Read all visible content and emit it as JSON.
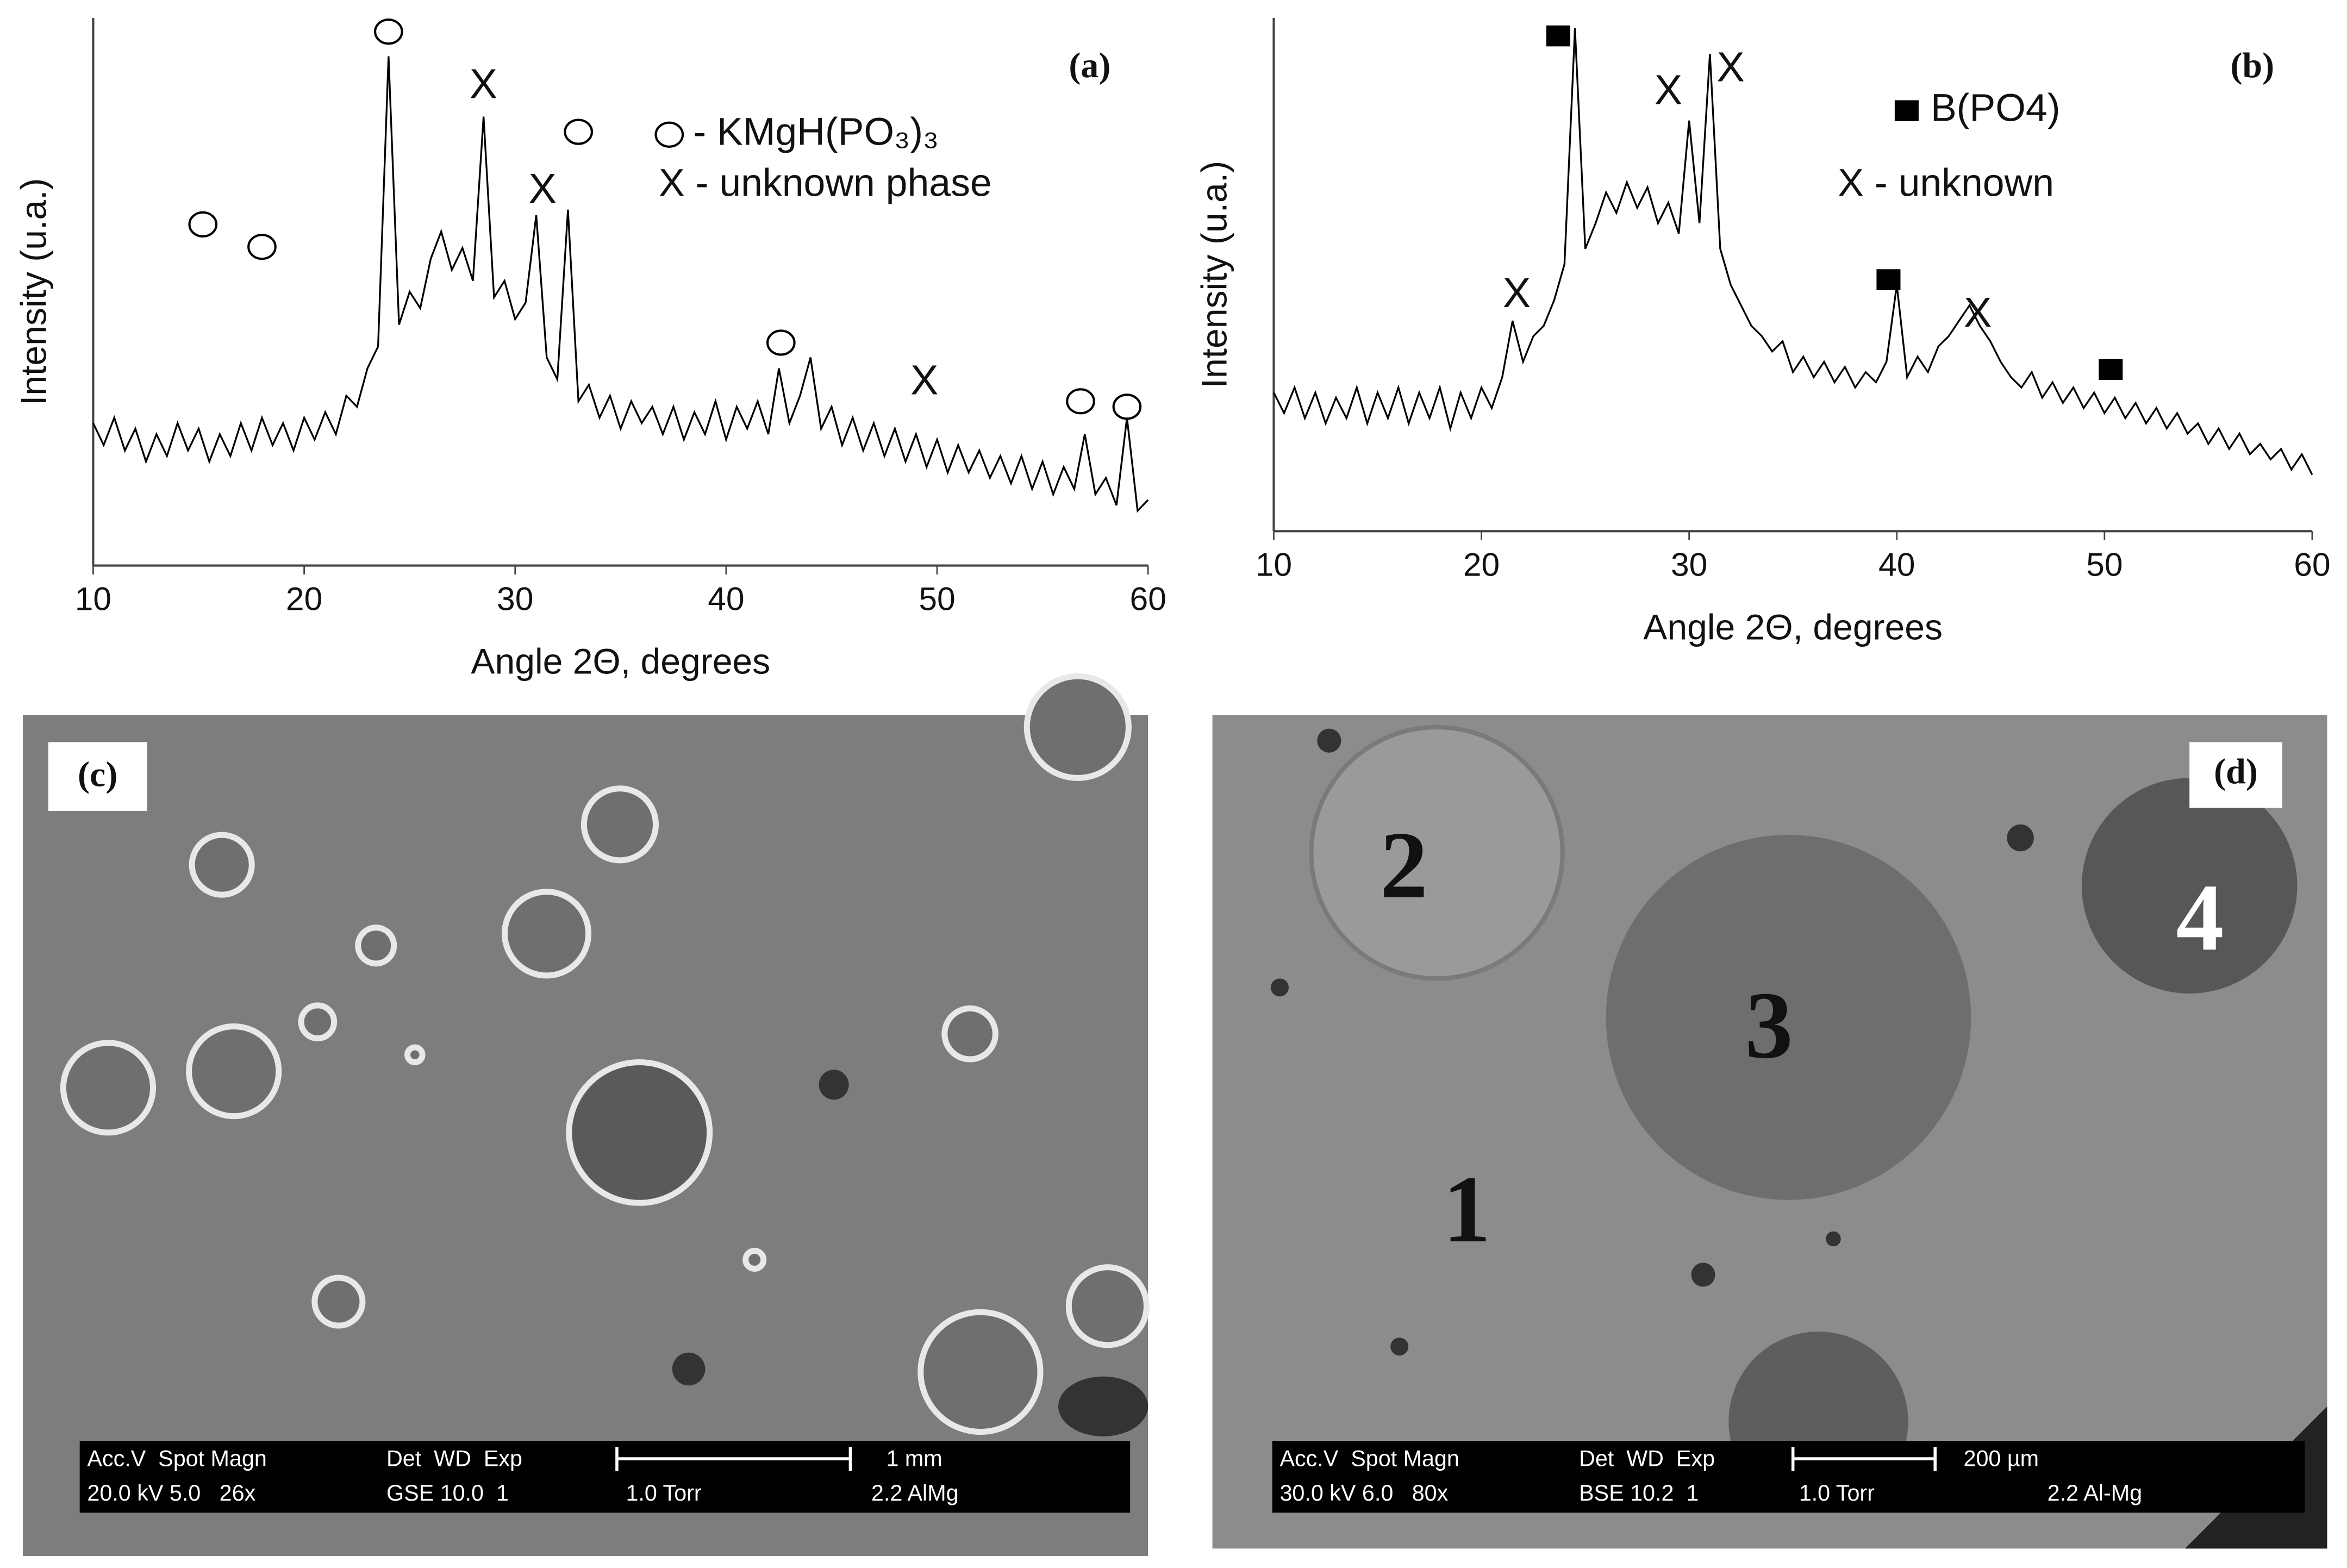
{
  "chart_data": [
    {
      "type": "line",
      "panel": "(a)",
      "xlabel": "Angle 2Θ, degrees",
      "ylabel": "Intensity (u.a.)",
      "color": "#000000",
      "xlim": [
        10,
        60
      ],
      "xticks": [
        10,
        20,
        30,
        40,
        50,
        60
      ],
      "ylim": [
        0,
        100
      ],
      "x": [
        10,
        10.5,
        11,
        11.5,
        12,
        12.5,
        13,
        13.5,
        14,
        14.5,
        15,
        15.5,
        16,
        16.5,
        17,
        17.5,
        18,
        18.5,
        19,
        19.5,
        20,
        20.5,
        21,
        21.5,
        22,
        22.5,
        23,
        23.5,
        24,
        24.5,
        25,
        25.5,
        26,
        26.5,
        27,
        27.5,
        28,
        28.5,
        29,
        29.5,
        30,
        30.5,
        31,
        31.5,
        32,
        32.5,
        33,
        33.5,
        34,
        34.5,
        35,
        35.5,
        36,
        36.5,
        37,
        37.5,
        38,
        38.5,
        39,
        39.5,
        40,
        40.5,
        41,
        41.5,
        42,
        42.5,
        43,
        43.5,
        44,
        44.5,
        45,
        45.5,
        46,
        46.5,
        47,
        47.5,
        48,
        48.5,
        49,
        49.5,
        50,
        50.5,
        51,
        51.5,
        52,
        52.5,
        53,
        53.5,
        54,
        54.5,
        55,
        55.5,
        56,
        56.5,
        57,
        57.5,
        58,
        58.5,
        59,
        59.5,
        60
      ],
      "values": [
        26,
        22,
        27,
        21,
        25,
        19,
        24,
        20,
        26,
        21,
        25,
        19,
        24,
        20,
        26,
        21,
        27,
        22,
        26,
        21,
        27,
        23,
        28,
        24,
        31,
        29,
        36,
        40,
        93,
        44,
        50,
        47,
        56,
        61,
        54,
        58,
        52,
        82,
        49,
        52,
        45,
        48,
        64,
        38,
        34,
        65,
        30,
        33,
        27,
        31,
        25,
        30,
        26,
        29,
        24,
        29,
        23,
        28,
        24,
        30,
        23,
        29,
        25,
        30,
        24,
        36,
        26,
        31,
        38,
        25,
        29,
        22,
        27,
        21,
        26,
        20,
        25,
        19,
        24,
        18,
        23,
        17,
        22,
        17,
        21,
        16,
        20,
        15,
        20,
        14,
        19,
        13,
        18,
        14,
        24,
        13,
        16,
        11,
        27,
        10,
        12
      ],
      "annotations": [
        {
          "symbol": "circle",
          "x": 24.0,
          "y": 97.5
        },
        {
          "symbol": "circle",
          "x": 15.2,
          "y": 62.3
        },
        {
          "symbol": "circle",
          "x": 18.0,
          "y": 58.2
        },
        {
          "symbol": "circle",
          "x": 33.0,
          "y": 79.2
        },
        {
          "symbol": "circle",
          "x": 42.6,
          "y": 40.7
        },
        {
          "symbol": "circle",
          "x": 56.8,
          "y": 30
        },
        {
          "symbol": "circle",
          "x": 59.0,
          "y": 29
        },
        {
          "text": "X",
          "x": 28.5,
          "y": 87.4
        },
        {
          "text": "X",
          "x": 31.3,
          "y": 68.3
        },
        {
          "text": "X",
          "x": 49.4,
          "y": 33.3
        }
      ],
      "legend": [
        {
          "symbol": "circle",
          "text": "- KMgH(PO₃)₃"
        },
        {
          "text": "X - unknown phase"
        }
      ]
    },
    {
      "type": "line",
      "panel": "(b)",
      "xlabel": "Angle 2Θ, degrees",
      "ylabel": "Intensity (u.a.)",
      "color": "#000000",
      "xlim": [
        10,
        60
      ],
      "xticks": [
        10,
        20,
        30,
        40,
        50,
        60
      ],
      "ylim": [
        0,
        100
      ],
      "x": [
        10,
        10.5,
        11,
        11.5,
        12,
        12.5,
        13,
        13.5,
        14,
        14.5,
        15,
        15.5,
        16,
        16.5,
        17,
        17.5,
        18,
        18.5,
        19,
        19.5,
        20,
        20.5,
        21,
        21.5,
        22,
        22.5,
        23,
        23.5,
        24,
        24.5,
        25,
        25.5,
        26,
        26.5,
        27,
        27.5,
        28,
        28.5,
        29,
        29.5,
        30,
        30.5,
        31,
        31.5,
        32,
        32.5,
        33,
        33.5,
        34,
        34.5,
        35,
        35.5,
        36,
        36.5,
        37,
        37.5,
        38,
        38.5,
        39,
        39.5,
        40,
        40.5,
        41,
        41.5,
        42,
        42.5,
        43,
        43.5,
        44,
        44.5,
        45,
        45.5,
        46,
        46.5,
        47,
        47.5,
        48,
        48.5,
        49,
        49.5,
        50,
        50.5,
        51,
        51.5,
        52,
        52.5,
        53,
        53.5,
        54,
        54.5,
        55,
        55.5,
        56,
        56.5,
        57,
        57.5,
        58,
        58.5,
        59,
        59.5,
        60
      ],
      "values": [
        27,
        23,
        28,
        22,
        27,
        21,
        26,
        22,
        28,
        21,
        27,
        22,
        28,
        21,
        27,
        22,
        28,
        20,
        27,
        22,
        28,
        24,
        30,
        41,
        33,
        38,
        40,
        45,
        52,
        98,
        55,
        60,
        66,
        62,
        68,
        63,
        67,
        60,
        64,
        58,
        80,
        60,
        93,
        55,
        48,
        44,
        40,
        38,
        35,
        37,
        31,
        34,
        30,
        33,
        29,
        32,
        28,
        31,
        29,
        33,
        48,
        30,
        34,
        31,
        36,
        38,
        41,
        44,
        40,
        37,
        33,
        30,
        28,
        31,
        26,
        29,
        25,
        28,
        24,
        27,
        23,
        26,
        22,
        25,
        21,
        24,
        20,
        23,
        19,
        21,
        17,
        20,
        16,
        19,
        15,
        17,
        14,
        16,
        12,
        15,
        11
      ],
      "annotations": [
        {
          "symbol": "square",
          "x": 23.7,
          "y": 96.5
        },
        {
          "symbol": "square",
          "x": 39.6,
          "y": 49
        },
        {
          "symbol": "square",
          "x": 50.3,
          "y": 31.5
        },
        {
          "text": "X",
          "x": 29.0,
          "y": 85.4
        },
        {
          "text": "X",
          "x": 32.0,
          "y": 89.8
        },
        {
          "text": "X",
          "x": 21.7,
          "y": 45.8
        },
        {
          "text": "X",
          "x": 43.9,
          "y": 42
        }
      ],
      "legend": [
        {
          "symbol": "square",
          "text": "B(PO4)"
        },
        {
          "text": "X - unknown"
        }
      ]
    }
  ],
  "images": [
    {
      "panel": "(c)",
      "info_top": [
        "Acc.V  Spot Magn",
        "Det  WD  Exp",
        "1 mm"
      ],
      "info_bottom": [
        "20.0 kV 5.0   26x",
        "GSE 10.0  1",
        "1.0 Torr",
        "2.2 AlMg"
      ]
    },
    {
      "panel": "(d)",
      "regions": [
        "1",
        "2",
        "3",
        "4"
      ],
      "info_top": [
        "Acc.V  Spot Magn",
        "Det  WD  Exp",
        "200 µm"
      ],
      "info_bottom": [
        "30.0 kV 6.0   80x",
        "BSE 10.2  1",
        "1.0 Torr",
        "2.2 Al-Mg"
      ]
    }
  ]
}
